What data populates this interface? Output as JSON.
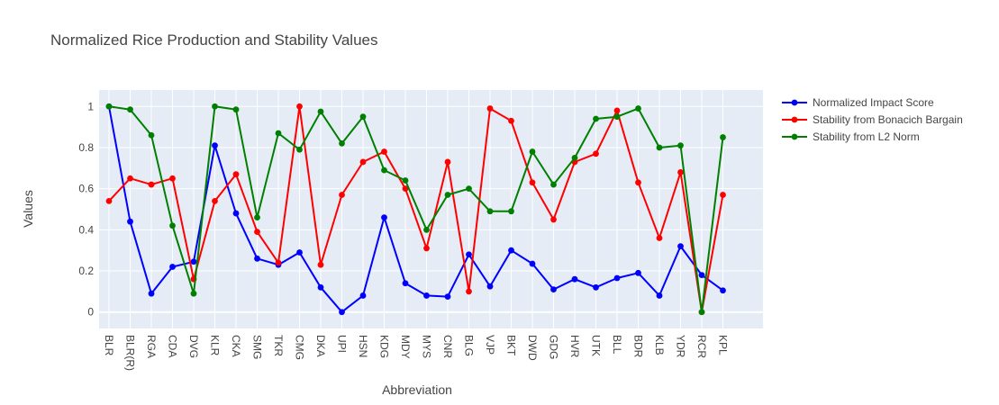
{
  "chart_data": {
    "type": "line",
    "title": "Normalized Rice Production and Stability Values",
    "xlabel": "Abbreviation",
    "ylabel": "Values",
    "categories": [
      "BLR",
      "BLR(R)",
      "RGA",
      "CDA",
      "DVG",
      "KLR",
      "CKA",
      "SMG",
      "TKR",
      "CMG",
      "DKA",
      "UPI",
      "HSN",
      "KDG",
      "MDY",
      "MYS",
      "CNR",
      "BLG",
      "VJP",
      "BKT",
      "DWD",
      "GDG",
      "HVR",
      "UTK",
      "BLL",
      "BDR",
      "KLB",
      "YDR",
      "RCR",
      "KPL"
    ],
    "ylim": [
      -0.08,
      1.08
    ],
    "yticks": [
      0,
      0.2,
      0.4,
      0.6,
      0.8,
      1
    ],
    "ytick_labels": [
      "0",
      "0.2",
      "0.4",
      "0.6",
      "0.8",
      "1"
    ],
    "grid": true,
    "legend_position": "top-right",
    "series": [
      {
        "name": "Normalized Impact Score",
        "color": "#0000ff",
        "values": [
          1.0,
          0.44,
          0.09,
          0.22,
          0.245,
          0.81,
          0.48,
          0.26,
          0.23,
          0.29,
          0.12,
          0.0,
          0.08,
          0.46,
          0.14,
          0.08,
          0.075,
          0.28,
          0.125,
          0.3,
          0.235,
          0.11,
          0.16,
          0.12,
          0.165,
          0.19,
          0.08,
          0.32,
          0.18,
          0.105
        ]
      },
      {
        "name": "Stability from Bonacich Bargain",
        "color": "#ff0000",
        "values": [
          0.54,
          0.65,
          0.62,
          0.65,
          0.16,
          0.54,
          0.67,
          0.39,
          0.24,
          1.0,
          0.23,
          0.57,
          0.73,
          0.78,
          0.6,
          0.31,
          0.73,
          0.1,
          0.99,
          0.93,
          0.63,
          0.45,
          0.73,
          0.77,
          0.98,
          0.63,
          0.36,
          0.68,
          0.0,
          0.57
        ]
      },
      {
        "name": "Stability from L2 Norm",
        "color": "#008000",
        "values": [
          1.0,
          0.985,
          0.86,
          0.42,
          0.09,
          1.0,
          0.985,
          0.46,
          0.87,
          0.79,
          0.975,
          0.82,
          0.95,
          0.69,
          0.64,
          0.4,
          0.57,
          0.6,
          0.49,
          0.49,
          0.78,
          0.62,
          0.75,
          0.94,
          0.95,
          0.99,
          0.8,
          0.81,
          0.0,
          0.85
        ]
      }
    ]
  }
}
